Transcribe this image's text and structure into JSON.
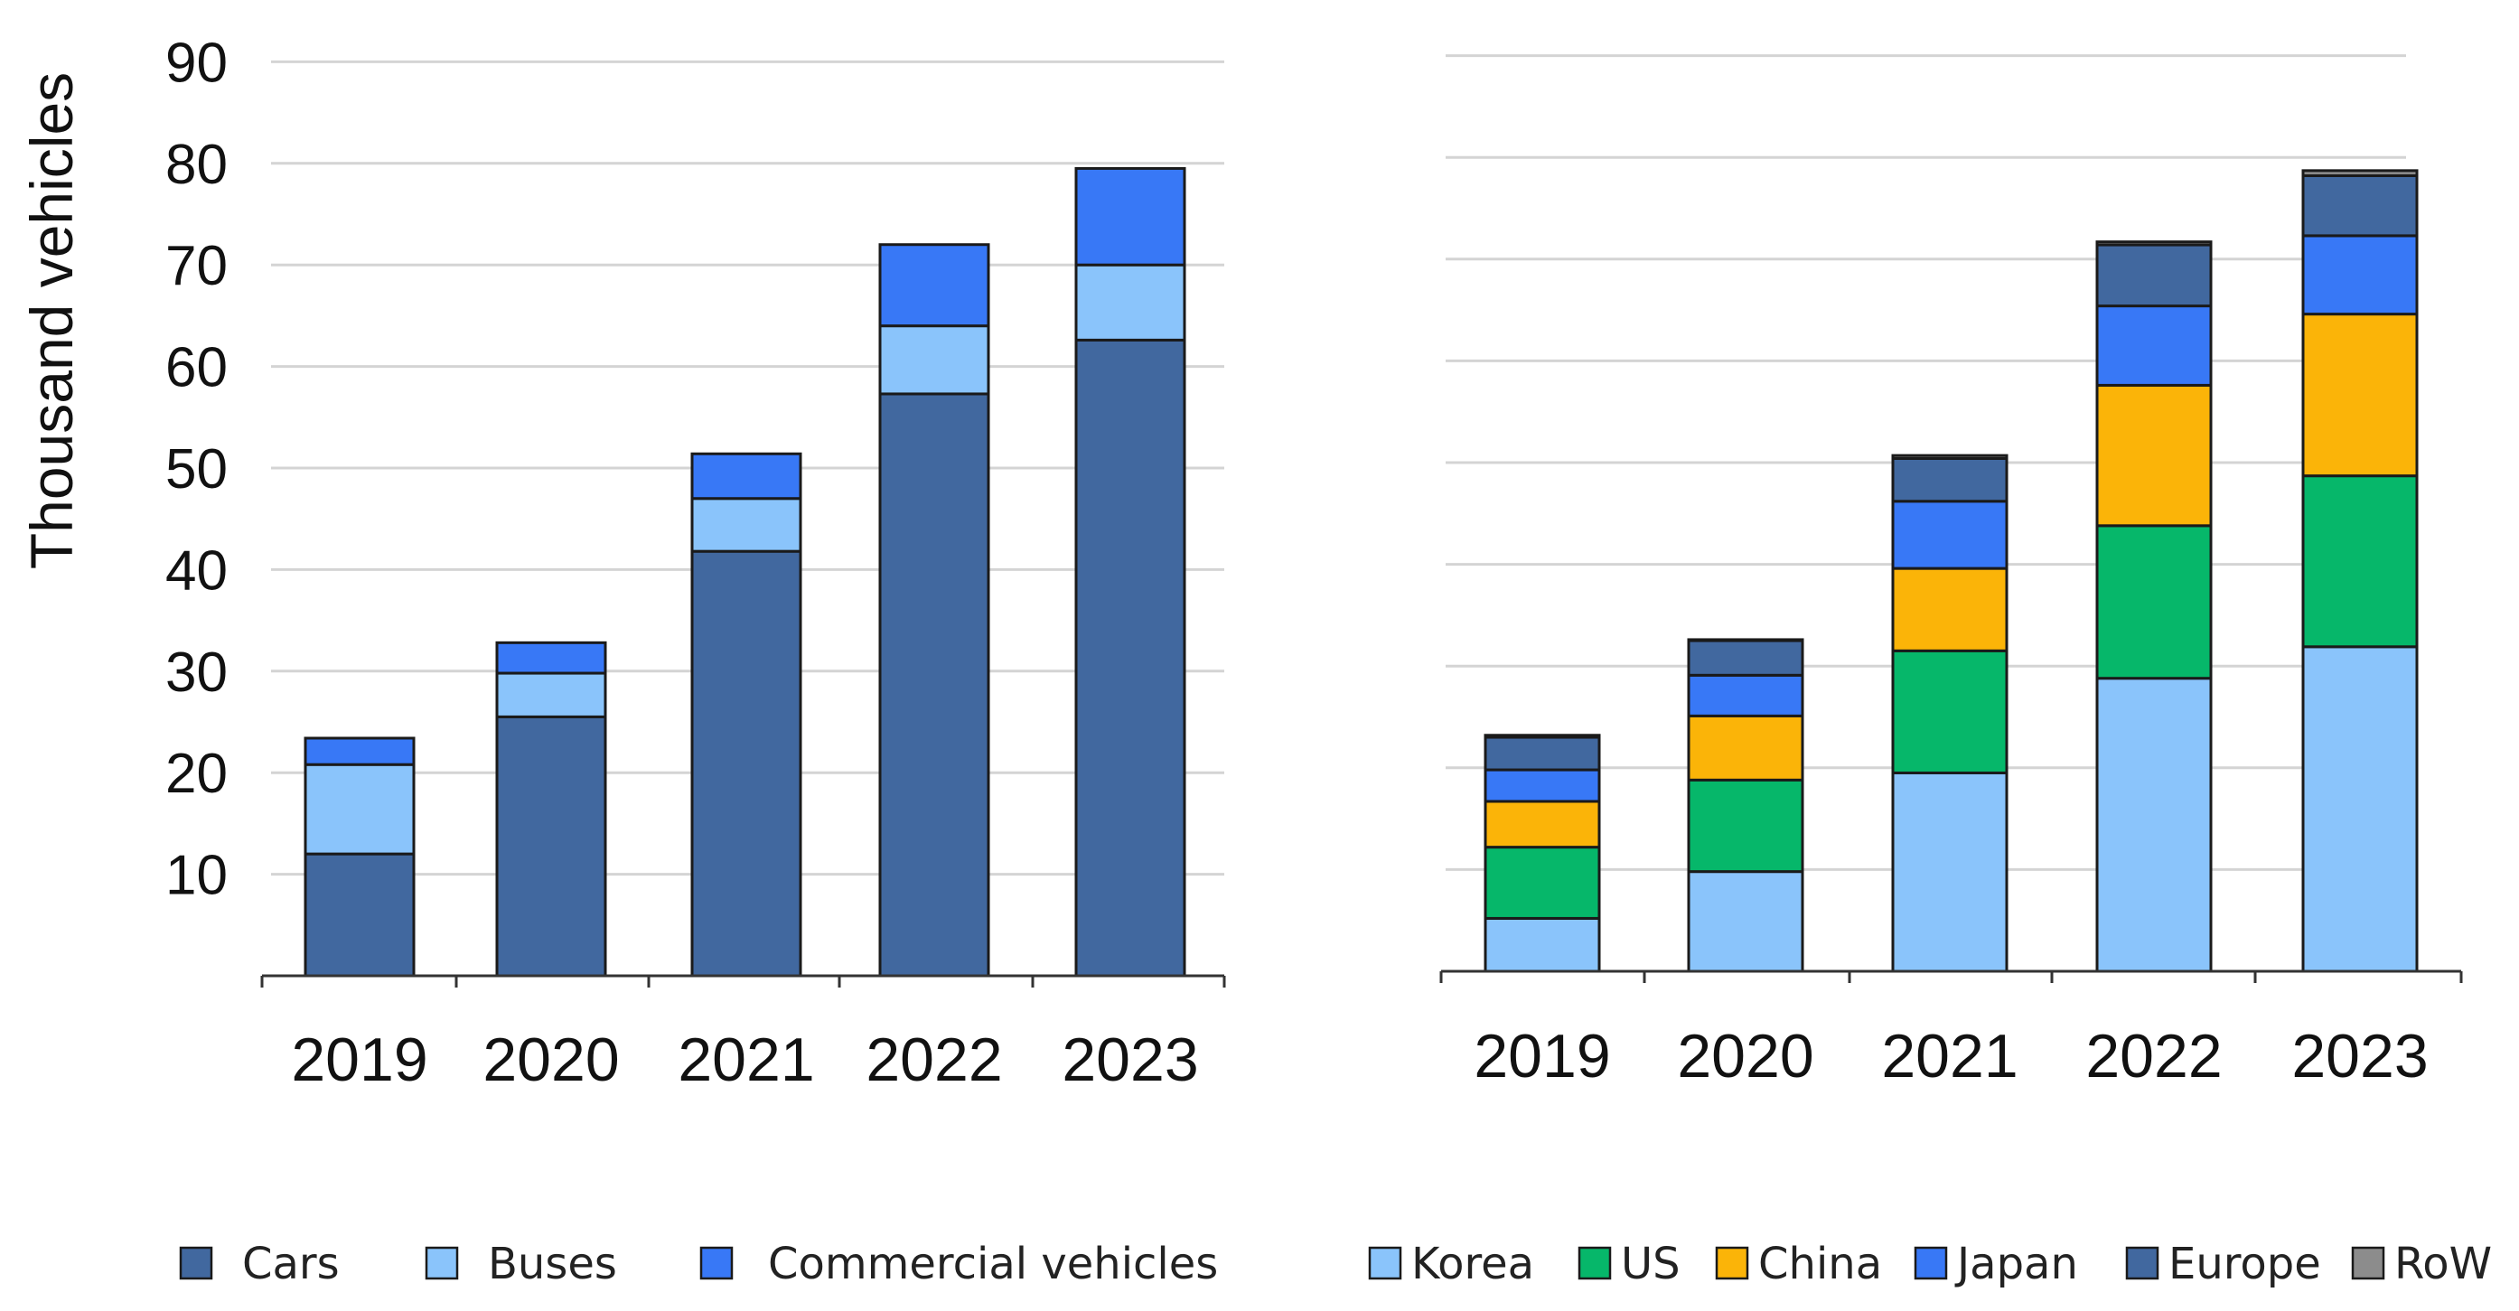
{
  "chart_data": [
    {
      "type": "bar",
      "stacked": true,
      "title": "",
      "xlabel": "",
      "ylabel": "Thousand vehicles",
      "ylim": [
        0,
        90
      ],
      "yticks": [
        10,
        20,
        30,
        40,
        50,
        60,
        70,
        80,
        90
      ],
      "categories": [
        "2019",
        "2020",
        "2021",
        "2022",
        "2023"
      ],
      "series": [
        {
          "name": "Cars",
          "color": "#41689f",
          "values": [
            12.0,
            25.5,
            41.8,
            57.3,
            62.6
          ]
        },
        {
          "name": "Buses",
          "color": "#8ac4fb",
          "values": [
            8.8,
            4.3,
            5.2,
            6.7,
            7.4
          ]
        },
        {
          "name": "Commercial vehicles",
          "color": "#3878f6",
          "values": [
            2.6,
            3.0,
            4.4,
            8.0,
            9.5
          ]
        }
      ],
      "legend_position": "bottom"
    },
    {
      "type": "bar",
      "stacked": true,
      "title": "",
      "xlabel": "",
      "ylabel": "",
      "ylim": [
        0,
        90
      ],
      "categories": [
        "2019",
        "2020",
        "2021",
        "2022",
        "2023"
      ],
      "series": [
        {
          "name": "Korea",
          "color": "#8ac4fb",
          "values": [
            5.2,
            9.8,
            19.5,
            28.8,
            31.9
          ]
        },
        {
          "name": "US",
          "color": "#06b76a",
          "values": [
            7.0,
            9.0,
            12.0,
            15.0,
            16.8
          ]
        },
        {
          "name": "China",
          "color": "#fbb408",
          "values": [
            4.5,
            6.3,
            8.1,
            13.8,
            15.9
          ]
        },
        {
          "name": "Japan",
          "color": "#3878f6",
          "values": [
            3.1,
            4.0,
            6.6,
            7.8,
            7.7
          ]
        },
        {
          "name": "Europe",
          "color": "#41689f",
          "values": [
            3.2,
            3.4,
            4.2,
            6.0,
            5.9
          ]
        },
        {
          "name": "RoW",
          "color": "#8c8c8c",
          "values": [
            0.2,
            0.1,
            0.3,
            0.3,
            0.5
          ]
        }
      ],
      "legend_position": "bottom"
    }
  ]
}
